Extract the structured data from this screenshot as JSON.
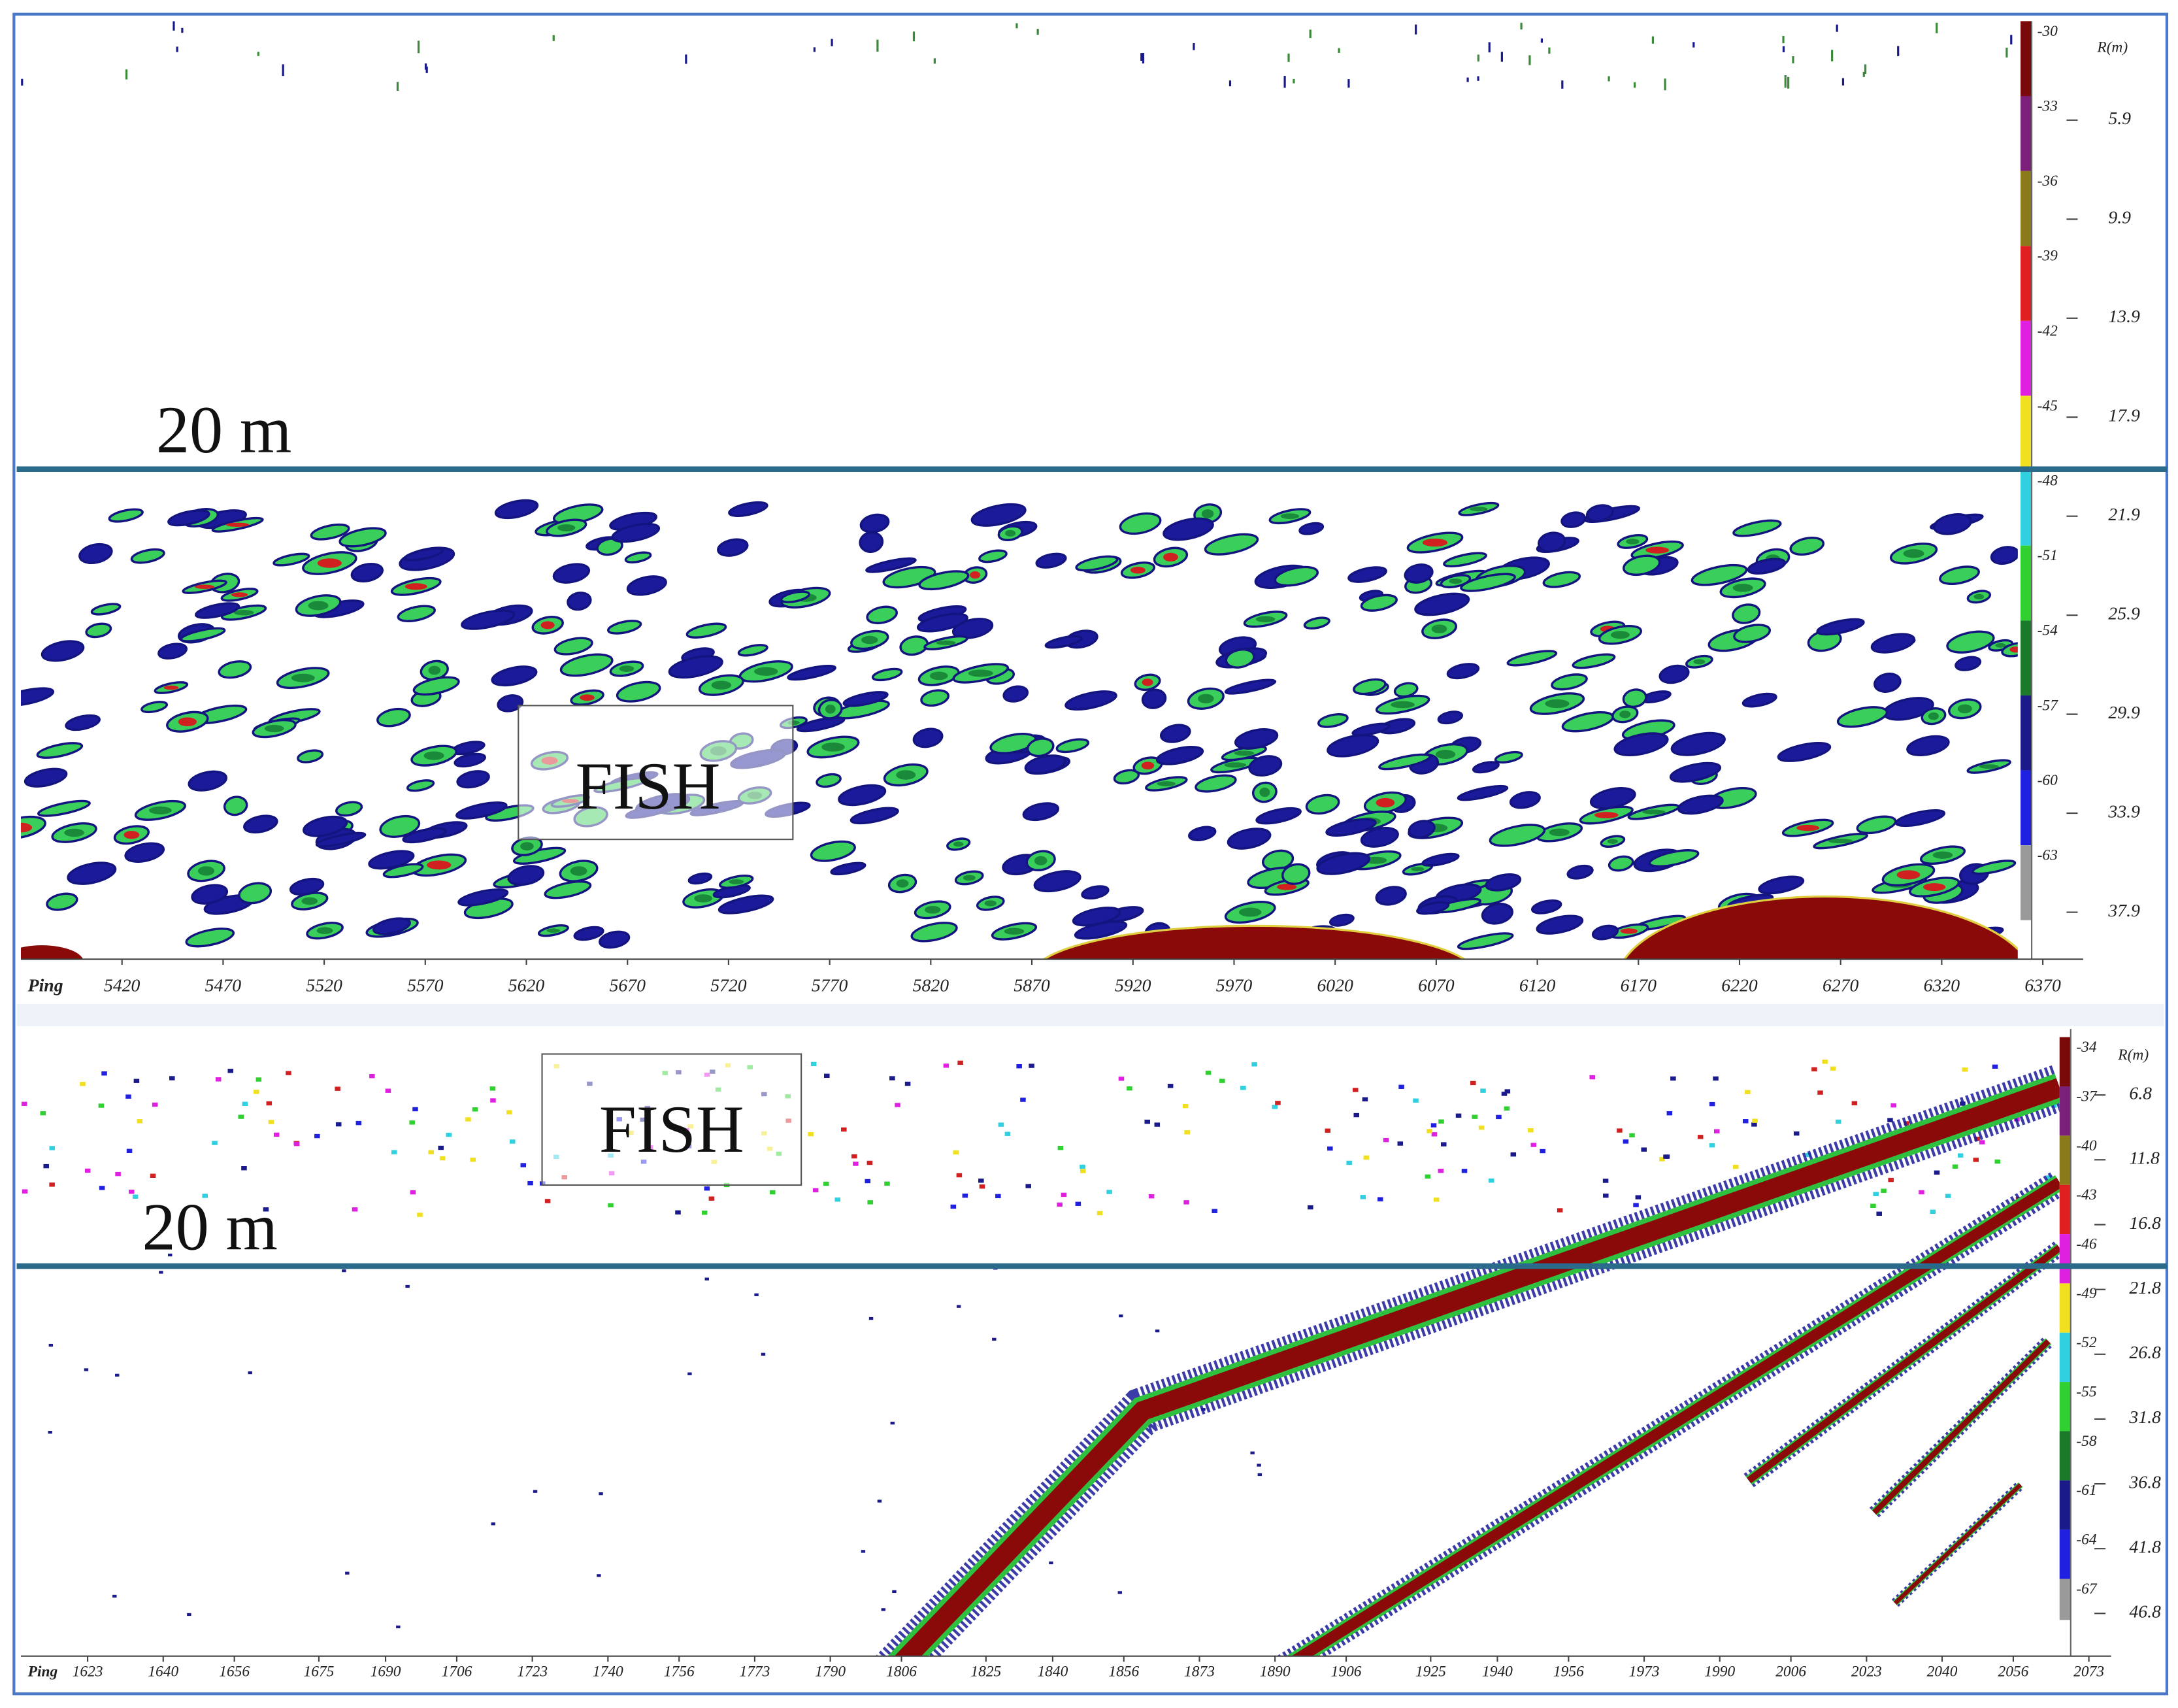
{
  "chart_data": [
    {
      "type": "echogram",
      "x_label": "Ping",
      "y_label": "R(m)",
      "xlim": [
        5370,
        6390
      ],
      "xticks": [
        5420,
        5470,
        5520,
        5570,
        5620,
        5670,
        5720,
        5770,
        5820,
        5870,
        5920,
        5970,
        6020,
        6070,
        6120,
        6170,
        6220,
        6270,
        6320,
        6370
      ],
      "ylim": [
        1.9,
        39.8
      ],
      "yticks": [
        5.9,
        9.9,
        13.9,
        17.9,
        21.9,
        25.9,
        29.9,
        33.9,
        37.9
      ],
      "colorbar": {
        "clim": [
          -30,
          -66
        ],
        "ticks": [
          -30,
          -33,
          -36,
          -39,
          -42,
          -45,
          -48,
          -51,
          -54,
          -57,
          -60,
          -63
        ],
        "colors": [
          "#7a0a0a",
          "#7a1f7a",
          "#8a7a1a",
          "#e02020",
          "#e020e0",
          "#f0e020",
          "#30d0e0",
          "#30d030",
          "#1a7a2a",
          "#1a1a8a",
          "#2020e0",
          "#9a9a9a"
        ]
      },
      "depth_line": {
        "value": 20,
        "label": "20 m"
      },
      "annotation": "FISH"
    },
    {
      "type": "echogram",
      "x_label": "Ping",
      "y_label": "R(m)",
      "xlim": [
        1608,
        2078
      ],
      "xticks": [
        1623,
        1640,
        1656,
        1675,
        1690,
        1706,
        1723,
        1740,
        1756,
        1773,
        1790,
        1806,
        1825,
        1840,
        1856,
        1873,
        1890,
        1906,
        1925,
        1940,
        1956,
        1973,
        1990,
        2006,
        2023,
        2040,
        2056,
        2073
      ],
      "ylim": [
        1.7,
        50.1
      ],
      "yticks": [
        6.8,
        11.8,
        16.8,
        21.8,
        26.8,
        31.8,
        36.8,
        41.8,
        46.8
      ],
      "colorbar": {
        "clim": [
          -33.5,
          -69.5
        ],
        "ticks": [
          -34,
          -37,
          -40,
          -43,
          -46,
          -49,
          -52,
          -55,
          -58,
          -61,
          -64,
          -67
        ],
        "colors": [
          "#7a0a0a",
          "#7a1f7a",
          "#8a7a1a",
          "#e02020",
          "#e020e0",
          "#f0e020",
          "#30d0e0",
          "#30d030",
          "#1a7a2a",
          "#1a1a8a",
          "#2020e0",
          "#9a9a9a"
        ]
      },
      "depth_line": {
        "value": 20,
        "label": "20 m"
      },
      "annotation": "FISH"
    }
  ]
}
